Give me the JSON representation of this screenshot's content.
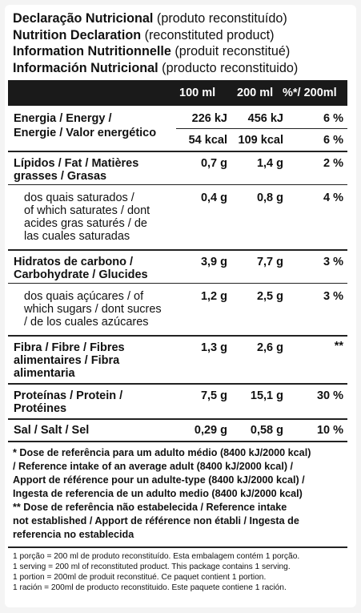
{
  "titles": [
    {
      "bold": "Declaração Nutricional",
      "normal": " (produto reconstituído)"
    },
    {
      "bold": "Nutrition Declaration",
      "normal": " (reconstituted product)"
    },
    {
      "bold": "Information Nutritionnelle",
      "normal": " (produit reconstitué)"
    },
    {
      "bold": "Información Nutricional",
      "normal": " (producto reconstituido)"
    }
  ],
  "columns": [
    "100 ml",
    "200 ml",
    "%*/ 200ml"
  ],
  "energy": {
    "label": "Energia / Energy /\nEnergie / Valor energético",
    "kj": [
      "226 kJ",
      "456 kJ",
      "6 %"
    ],
    "kcal": [
      "54 kcal",
      "109 kcal",
      "6 %"
    ]
  },
  "rows": {
    "fat": {
      "label": "Lípidos / Fat / Matières\ngrasses / Grasas",
      "values": [
        "0,7 g",
        "1,4 g",
        "2 %"
      ]
    },
    "saturates": {
      "label": "dos quais saturados /\nof which saturates / dont\nacides gras saturés / de\nlas cuales saturadas",
      "values": [
        "0,4 g",
        "0,8 g",
        "4 %"
      ]
    },
    "carbs": {
      "label": "Hidratos de carbono /\nCarbohydrate / Glucides",
      "values": [
        "3,9 g",
        "7,7 g",
        "3 %"
      ]
    },
    "sugars": {
      "label": "dos quais açúcares / of\nwhich sugars / dont sucres\n/ de los cuales azúcares",
      "values": [
        "1,2 g",
        "2,5 g",
        "3 %"
      ]
    },
    "fibre": {
      "label": "Fibra / Fibre / Fibres\nalimentaires / Fibra\nalimentaria",
      "values": [
        "1,3 g",
        "2,6 g",
        "**"
      ]
    },
    "protein": {
      "label": "Proteínas / Protein /\nProtéines",
      "values": [
        "7,5 g",
        "15,1 g",
        "30 %"
      ]
    },
    "salt": {
      "label": "Sal / Salt / Sel",
      "values": [
        "0,29 g",
        "0,58 g",
        "10 %"
      ]
    }
  },
  "footnote_bold": "* Dose de referência para um adulto médio (8400 kJ/2000 kcal)\n/ Reference intake of an average adult (8400 kJ/2000 kcal) /\nApport de référence pour un adulte-type (8400 kJ/2000 kcal) /\nIngesta de referencia de un adulto medio (8400 kJ/2000 kcal)\n** Dose de referência não estabelecida / Reference intake\nnot established / Apport de référence non établi / Ingesta de\nreferencia no establecida",
  "footnote_small": "1 porção = 200 ml de produto reconstituído. Esta embalagem contém 1 porção.\n1 serving = 200 ml of reconstituted product. This package contains 1 serving.\n1 portion = 200ml de produit reconstitué. Ce paquet contient 1 portion.\n1 ración = 200ml de producto reconstituido. Este paquete contiene 1 ración."
}
